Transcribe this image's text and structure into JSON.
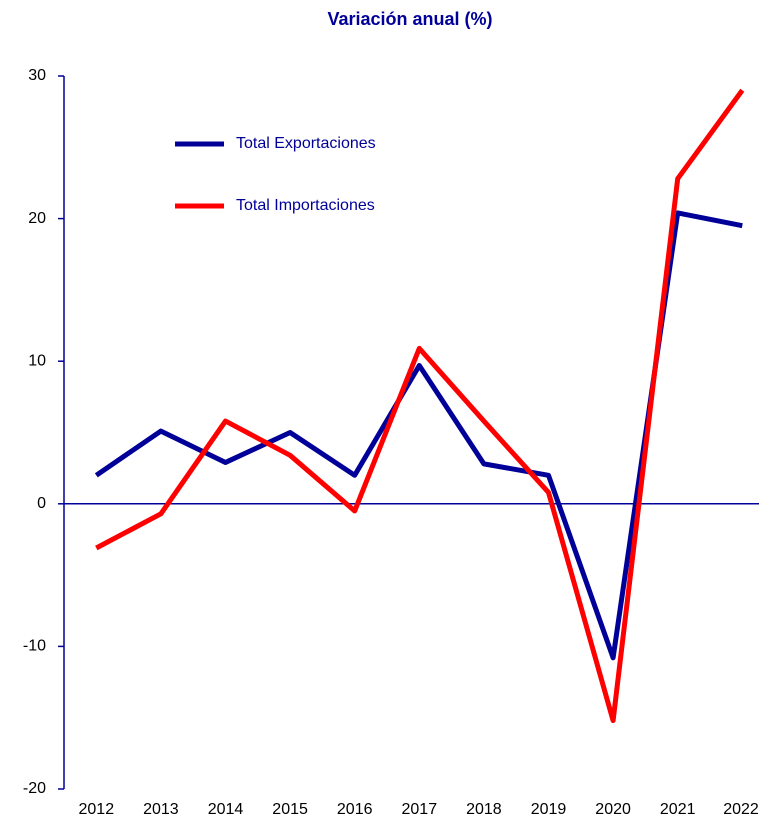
{
  "chart_data": {
    "type": "line",
    "title": "Variación anual (%)",
    "categories": [
      "2012",
      "2013",
      "2014",
      "2015",
      "2016",
      "2017",
      "2018",
      "2019",
      "2020",
      "2021",
      "2022"
    ],
    "series": [
      {
        "name": "Total Exportaciones",
        "color": "#000099",
        "values": [
          2.0,
          5.1,
          2.9,
          5.0,
          2.0,
          9.7,
          2.8,
          2.0,
          -10.8,
          20.4,
          19.5
        ]
      },
      {
        "name": "Total Importaciones",
        "color": "#ff0000",
        "values": [
          -3.1,
          -0.7,
          5.8,
          3.4,
          -0.5,
          10.9,
          5.8,
          0.8,
          -15.2,
          22.8,
          29.0
        ]
      }
    ],
    "ylim": [
      -20,
      30
    ],
    "yticks": [
      -20,
      -10,
      0,
      10,
      20,
      30
    ],
    "legend": "upper left"
  }
}
